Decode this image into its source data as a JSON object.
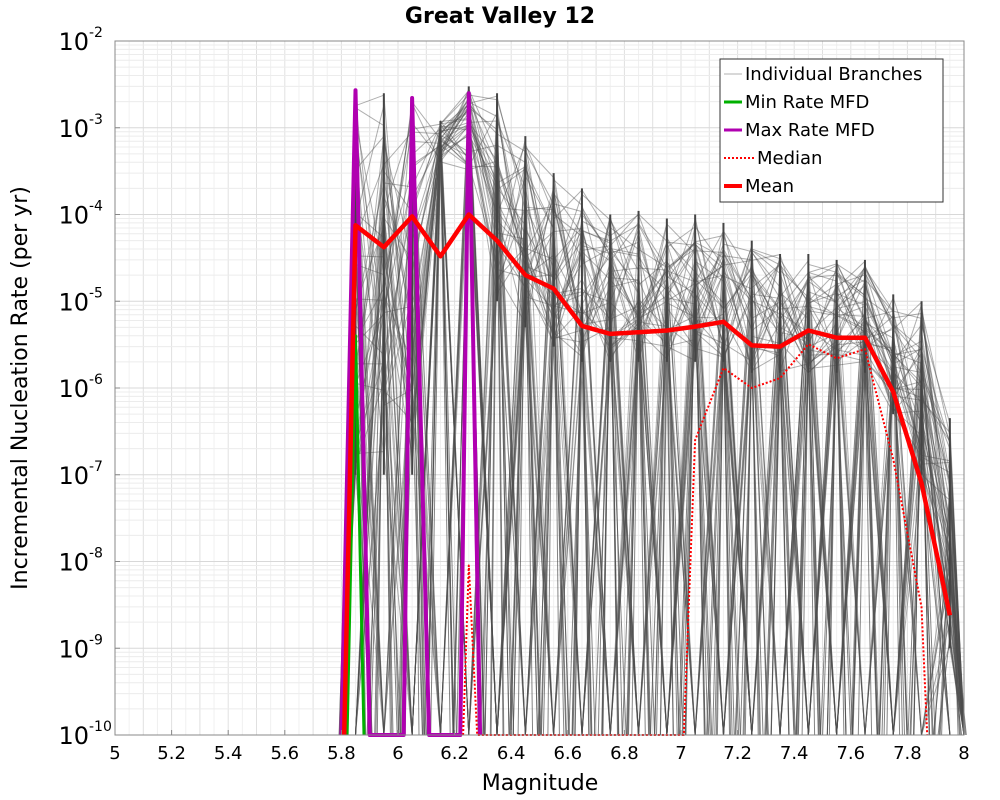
{
  "chart_data": {
    "type": "line",
    "title": "Great Valley 12",
    "xlabel": "Magnitude",
    "ylabel": "Incremental Nucleation Rate (per yr)",
    "xlim": [
      5,
      8
    ],
    "ylim": [
      1e-10,
      0.01
    ],
    "yscale": "log",
    "grid": true,
    "legend_position": "top-right",
    "x_ticks": [
      "5",
      "5.2",
      "5.4",
      "5.6",
      "5.8",
      "6",
      "6.2",
      "6.4",
      "6.6",
      "6.8",
      "7",
      "7.2",
      "7.4",
      "7.6",
      "7.8",
      "8"
    ],
    "y_ticks": [
      {
        "base": "10",
        "exp": "-2"
      },
      {
        "base": "10",
        "exp": "-3"
      },
      {
        "base": "10",
        "exp": "-4"
      },
      {
        "base": "10",
        "exp": "-5"
      },
      {
        "base": "10",
        "exp": "-6"
      },
      {
        "base": "10",
        "exp": "-7"
      },
      {
        "base": "10",
        "exp": "-8"
      },
      {
        "base": "10",
        "exp": "-9"
      },
      {
        "base": "10",
        "exp": "-10"
      }
    ],
    "legend": [
      {
        "name": "Individual Branches",
        "color": "#b0b0b0",
        "style": "thin"
      },
      {
        "name": "Min Rate MFD",
        "color": "#00b000",
        "style": "solid"
      },
      {
        "name": "Max Rate MFD",
        "color": "#b000b0",
        "style": "solid"
      },
      {
        "name": "Median",
        "color": "#ff0000",
        "style": "dotted"
      },
      {
        "name": "Mean",
        "color": "#ff0000",
        "style": "thick"
      }
    ],
    "series": [
      {
        "name": "Max Rate MFD",
        "color": "#b000b0",
        "points": [
          [
            5.8,
            1e-10
          ],
          [
            5.85,
            0.0027
          ],
          [
            5.9,
            1e-10
          ],
          [
            6.02,
            1e-10
          ],
          [
            6.05,
            0.0022
          ],
          [
            6.11,
            1e-10
          ],
          [
            6.22,
            1e-10
          ],
          [
            6.25,
            0.0025
          ],
          [
            6.29,
            1e-10
          ]
        ]
      },
      {
        "name": "Min Rate MFD",
        "color": "#00b000",
        "points": [
          [
            5.82,
            1e-10
          ],
          [
            5.85,
            4e-06
          ],
          [
            5.88,
            1e-10
          ]
        ]
      },
      {
        "name": "Median",
        "color": "#ff0000",
        "points": [
          [
            6.23,
            1e-10
          ],
          [
            6.25,
            9e-09
          ],
          [
            6.28,
            1e-10
          ],
          [
            7.01,
            1e-10
          ],
          [
            7.05,
            2.5e-07
          ],
          [
            7.15,
            1.7e-06
          ],
          [
            7.25,
            1e-06
          ],
          [
            7.35,
            1.3e-06
          ],
          [
            7.45,
            3.2e-06
          ],
          [
            7.55,
            2.2e-06
          ],
          [
            7.65,
            2.8e-06
          ],
          [
            7.75,
            1.5e-07
          ],
          [
            7.85,
            3e-09
          ],
          [
            7.87,
            1e-10
          ]
        ]
      },
      {
        "name": "Mean",
        "color": "#ff0000",
        "points": [
          [
            5.81,
            1e-10
          ],
          [
            5.85,
            7.5e-05
          ],
          [
            5.95,
            4.2e-05
          ],
          [
            6.05,
            9.5e-05
          ],
          [
            6.15,
            3.3e-05
          ],
          [
            6.25,
            0.0001
          ],
          [
            6.35,
            5e-05
          ],
          [
            6.45,
            2e-05
          ],
          [
            6.55,
            1.4e-05
          ],
          [
            6.65,
            5.2e-06
          ],
          [
            6.75,
            4.2e-06
          ],
          [
            6.85,
            4.4e-06
          ],
          [
            6.95,
            4.6e-06
          ],
          [
            7.05,
            5.1e-06
          ],
          [
            7.15,
            5.8e-06
          ],
          [
            7.25,
            3.1e-06
          ],
          [
            7.35,
            3e-06
          ],
          [
            7.45,
            4.6e-06
          ],
          [
            7.55,
            3.8e-06
          ],
          [
            7.65,
            3.8e-06
          ],
          [
            7.75,
            9e-07
          ],
          [
            7.85,
            8e-08
          ],
          [
            7.95,
            2.4e-09
          ]
        ]
      }
    ],
    "branch_peaks": [
      {
        "x": 5.85,
        "low": 1e-07,
        "high": 0.0025
      },
      {
        "x": 5.95,
        "low": 1e-07,
        "high": 0.0025
      },
      {
        "x": 6.05,
        "low": 1e-07,
        "high": 0.0023
      },
      {
        "x": 6.15,
        "low": 0.0004,
        "high": 0.0012
      },
      {
        "x": 6.25,
        "low": 0.0003,
        "high": 0.003
      },
      {
        "x": 6.35,
        "low": 1e-05,
        "high": 0.0025
      },
      {
        "x": 6.45,
        "low": 5e-06,
        "high": 0.0008
      },
      {
        "x": 6.55,
        "low": 3e-06,
        "high": 0.0003
      },
      {
        "x": 6.65,
        "low": 2e-06,
        "high": 0.0002
      },
      {
        "x": 6.75,
        "low": 2e-06,
        "high": 0.0001
      },
      {
        "x": 6.85,
        "low": 2e-06,
        "high": 0.00011
      },
      {
        "x": 6.95,
        "low": 2e-06,
        "high": 9e-05
      },
      {
        "x": 7.05,
        "low": 2e-06,
        "high": 0.0001
      },
      {
        "x": 7.15,
        "low": 2e-06,
        "high": 8e-05
      },
      {
        "x": 7.25,
        "low": 1.5e-06,
        "high": 5e-05
      },
      {
        "x": 7.35,
        "low": 1.5e-06,
        "high": 3.5e-05
      },
      {
        "x": 7.45,
        "low": 1.5e-06,
        "high": 3.5e-05
      },
      {
        "x": 7.55,
        "low": 1.5e-06,
        "high": 3e-05
      },
      {
        "x": 7.65,
        "low": 1.5e-06,
        "high": 3e-05
      },
      {
        "x": 7.75,
        "low": 5e-07,
        "high": 1.2e-05
      },
      {
        "x": 7.85,
        "low": 1e-07,
        "high": 1e-05
      },
      {
        "x": 7.95,
        "low": 1e-09,
        "high": 4.5e-07
      }
    ]
  }
}
